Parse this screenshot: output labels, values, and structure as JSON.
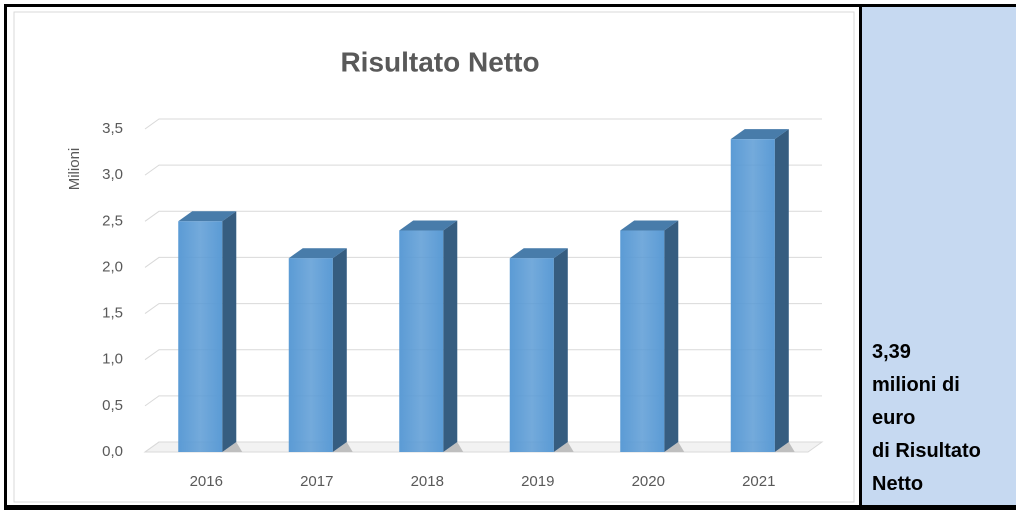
{
  "chart_data": {
    "type": "bar3d",
    "title": "Risultato Netto",
    "y_label": "Milioni",
    "categories": [
      "2016",
      "2017",
      "2018",
      "2019",
      "2020",
      "2021"
    ],
    "values": [
      2.5,
      2.1,
      2.4,
      2.1,
      2.4,
      3.39
    ],
    "color": "#5b9bd5",
    "ylim": [
      0,
      3.5
    ],
    "yticks": [
      {
        "value": 0,
        "label": "0,0"
      },
      {
        "value": 0.5,
        "label": "0,5"
      },
      {
        "value": 1,
        "label": "1,0"
      },
      {
        "value": 1.5,
        "label": "1,5"
      },
      {
        "value": 2,
        "label": "2,0"
      },
      {
        "value": 2.5,
        "label": "2,5"
      },
      {
        "value": 3,
        "label": "3,0"
      },
      {
        "value": 3.5,
        "label": "3,5"
      }
    ],
    "grid": true
  },
  "panel": {
    "lines": [
      "3,39",
      "milioni di",
      "euro",
      "di Risultato",
      "Netto"
    ]
  }
}
